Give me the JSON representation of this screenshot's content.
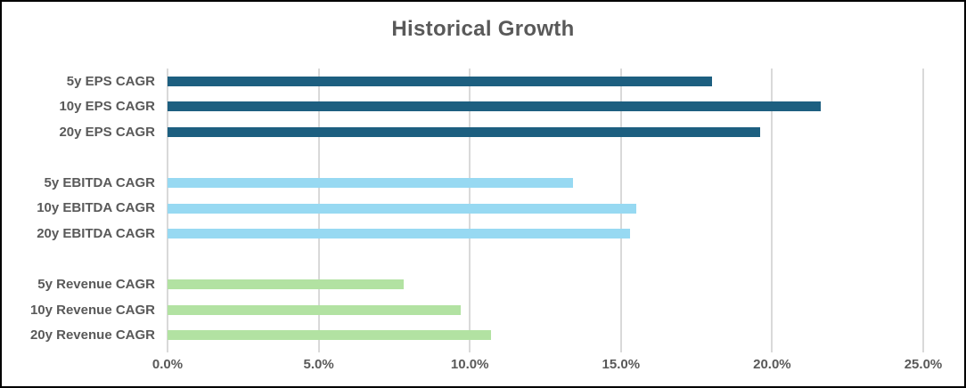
{
  "chart_data": {
    "type": "bar",
    "orientation": "horizontal",
    "title": "Historical Growth",
    "unit": "%",
    "categories": [
      "5y EPS CAGR",
      "10y EPS CAGR",
      "20y EPS CAGR",
      "5y EBITDA CAGR",
      "10y EBITDA CAGR",
      "20y EBITDA CAGR",
      "5y Revenue CAGR",
      "10y Revenue CAGR",
      "20y Revenue CAGR"
    ],
    "values": [
      18.0,
      21.6,
      19.6,
      13.4,
      15.5,
      15.3,
      7.8,
      9.7,
      10.7
    ],
    "groups": [
      {
        "name": "EPS",
        "color": "#1D5F80",
        "indices": [
          0,
          1,
          2
        ]
      },
      {
        "name": "EBITDA",
        "color": "#97D9F2",
        "indices": [
          3,
          4,
          5
        ]
      },
      {
        "name": "Revenue",
        "color": "#B2E2A2",
        "indices": [
          6,
          7,
          8
        ]
      }
    ],
    "row_slots": [
      0,
      1,
      2,
      null,
      3,
      4,
      5,
      null,
      6,
      7,
      8
    ],
    "xlim": [
      0,
      25
    ],
    "x_tick_values": [
      0,
      5,
      10,
      15,
      20,
      25
    ],
    "x_tick_labels": [
      "0.0%",
      "5.0%",
      "10.0%",
      "15.0%",
      "20.0%",
      "25.0%"
    ],
    "grid": true,
    "legend": false
  },
  "colors": {
    "text": "#595959",
    "gridline": "#D9D9D9",
    "border": "#000000",
    "background": "#FFFFFF"
  }
}
